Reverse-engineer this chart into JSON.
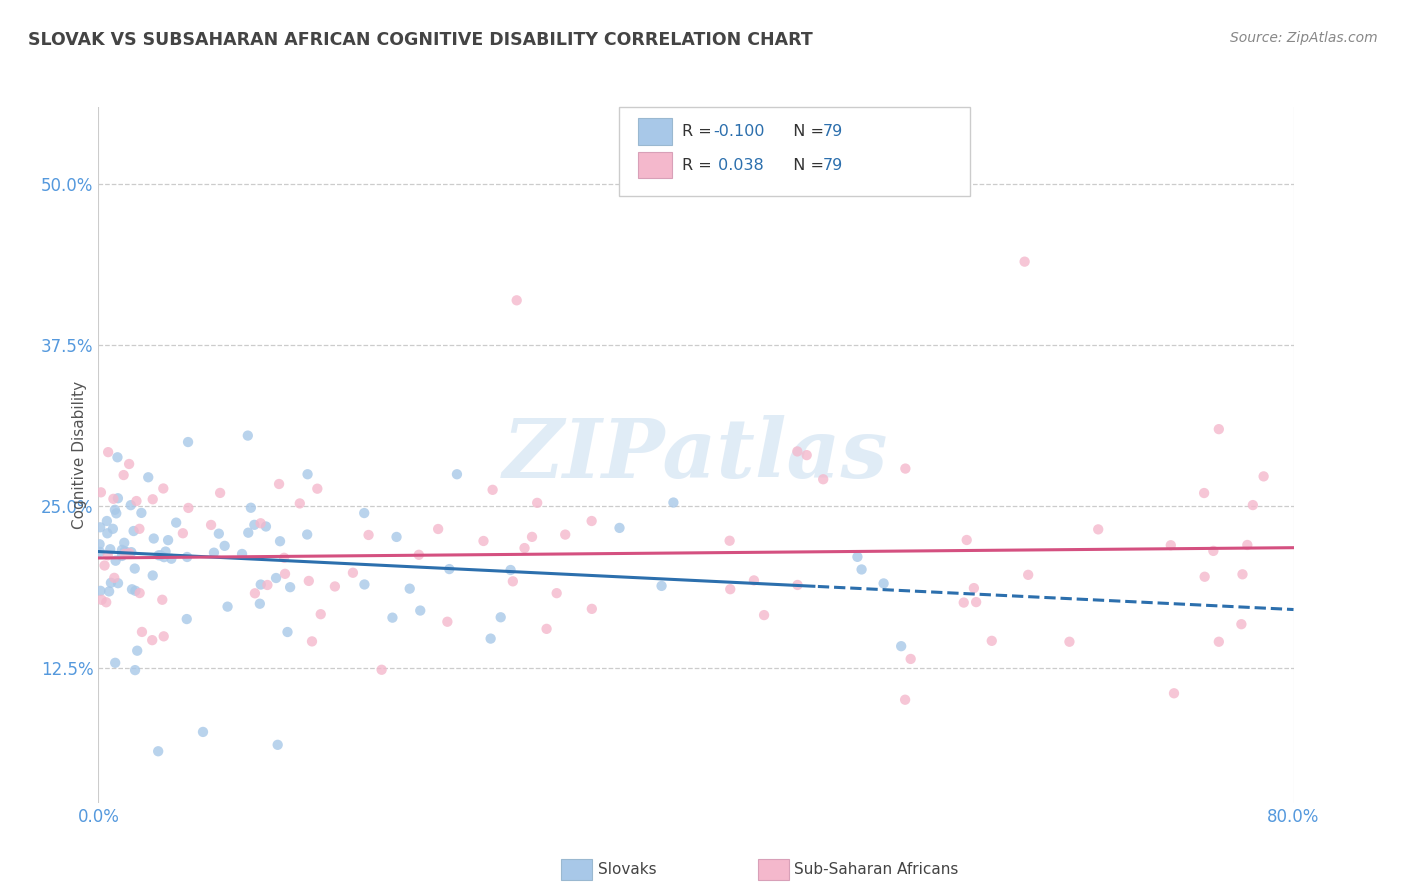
{
  "title": "SLOVAK VS SUBSAHARAN AFRICAN COGNITIVE DISABILITY CORRELATION CHART",
  "source": "Source: ZipAtlas.com",
  "ylabel": "Cognitive Disability",
  "legend_label1": "Slovaks",
  "legend_label2": "Sub-Saharan Africans",
  "r1": -0.1,
  "r2": 0.038,
  "n1": 79,
  "n2": 79,
  "blue_dot_color": "#a8c8e8",
  "pink_dot_color": "#f4b8cc",
  "blue_line_color": "#2c6fad",
  "pink_line_color": "#d45080",
  "legend_box_blue": "#a8c8e8",
  "legend_box_pink": "#f4b8cc",
  "title_color": "#444444",
  "axis_label_color": "#5599dd",
  "watermark_text": "ZIPatlas",
  "x_range": [
    0.0,
    0.8
  ],
  "y_range": [
    0.02,
    0.56
  ],
  "ytick_vals": [
    0.125,
    0.25,
    0.375,
    0.5
  ],
  "ytick_labels": [
    "12.5%",
    "25.0%",
    "37.5%",
    "50.0%"
  ],
  "xtick_vals": [
    0.0,
    0.8
  ],
  "xtick_labels": [
    "0.0%",
    "80.0%"
  ],
  "background_color": "#ffffff",
  "grid_color": "#cccccc",
  "blue_line_solid_end": 0.48,
  "legend_r1_text": "R = -0.100",
  "legend_r2_text": "R =  0.038",
  "legend_n_text": "N = 79",
  "sk_trend_y0": 0.215,
  "sk_trend_y1": 0.17,
  "ssa_trend_y0": 0.21,
  "ssa_trend_y1": 0.218
}
